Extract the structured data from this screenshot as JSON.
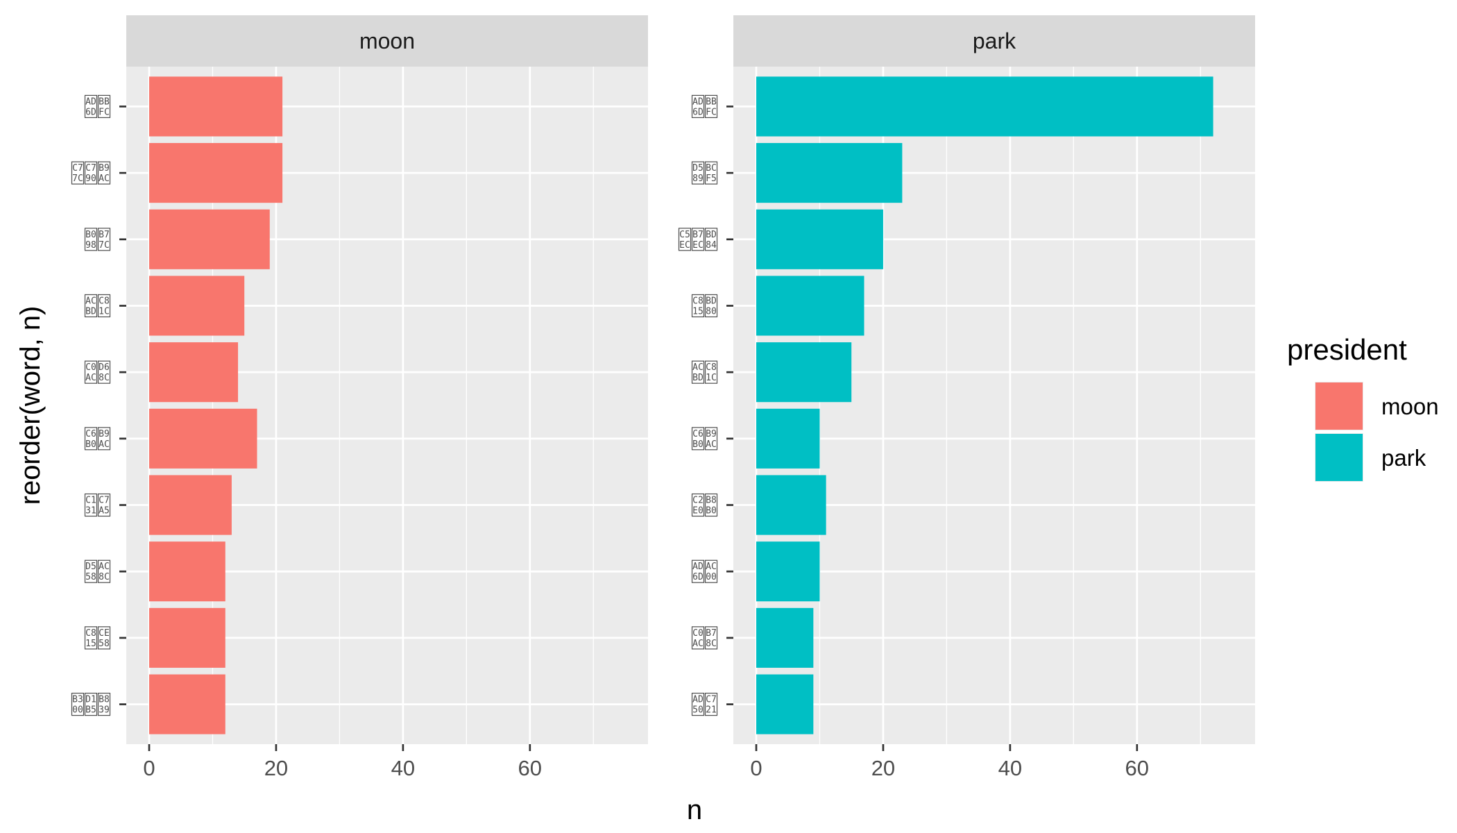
{
  "chart_data": {
    "type": "bar",
    "orientation": "horizontal",
    "facet_by": "president",
    "xlabel": "n",
    "ylabel": "reorder(word, n)",
    "xlim": [
      0,
      75
    ],
    "x_ticks": [
      "0",
      "20",
      "40",
      "60"
    ],
    "grid": true,
    "legend": {
      "title": "president",
      "position": "right",
      "entries": [
        {
          "label": "moon",
          "color": "#F8766D"
        },
        {
          "label": "park",
          "color": "#00BFC4"
        }
      ]
    },
    "panels": [
      {
        "strip": "moon",
        "color": "#F8766D",
        "categories": [
          [
            "AD",
            "BB",
            "6D",
            "FC"
          ],
          [
            "C7",
            "C7",
            "B9",
            "7C",
            "90",
            "AC"
          ],
          [
            "B0",
            "B7",
            "98",
            "7C"
          ],
          [
            "AC",
            "C8",
            "BD",
            "1C"
          ],
          [
            "C0",
            "D6",
            "AC",
            "8C"
          ],
          [
            "C6",
            "B9",
            "B0",
            "AC"
          ],
          [
            "C1",
            "C7",
            "31",
            "A5"
          ],
          [
            "D5",
            "AC",
            "58",
            "8C"
          ],
          [
            "C8",
            "CE",
            "15",
            "58"
          ],
          [
            "B3",
            "D1",
            "B8",
            "00",
            "B5",
            "39"
          ]
        ],
        "values": [
          21,
          21,
          19,
          15,
          14,
          17,
          13,
          12,
          12,
          12
        ]
      },
      {
        "strip": "park",
        "color": "#00BFC4",
        "categories": [
          [
            "AD",
            "BB",
            "6D",
            "FC"
          ],
          [
            "D5",
            "BC",
            "89",
            "F5"
          ],
          [
            "C5",
            "B7",
            "BD",
            "EC",
            "EC",
            "84"
          ],
          [
            "C8",
            "BD",
            "15",
            "80"
          ],
          [
            "AC",
            "C8",
            "BD",
            "1C"
          ],
          [
            "C6",
            "B9",
            "B0",
            "AC"
          ],
          [
            "C2",
            "B8",
            "E0",
            "B0"
          ],
          [
            "AD",
            "AC",
            "6D",
            "00"
          ],
          [
            "C0",
            "B7",
            "AC",
            "8C"
          ],
          [
            "AD",
            "C7",
            "50",
            "21"
          ]
        ],
        "values": [
          72,
          23,
          20,
          17,
          15,
          10,
          11,
          10,
          9,
          9
        ]
      }
    ]
  }
}
